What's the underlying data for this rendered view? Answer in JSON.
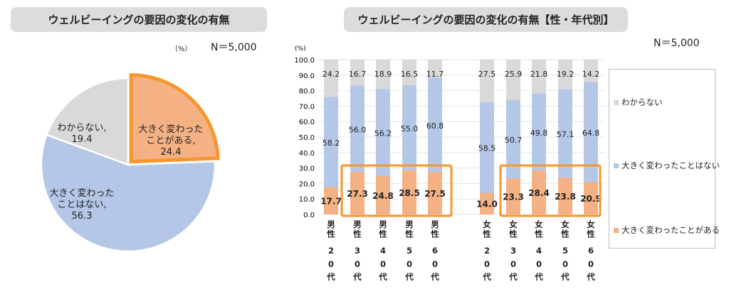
{
  "colors": {
    "changed": "#F4B183",
    "not_changed": "#B4C7E7",
    "unknown": "#D9D9D9",
    "highlight": "#F7962F"
  },
  "left": {
    "title": "ウェルビーイングの要因の変化の有無",
    "unit": "（%）",
    "n": "N＝5,000"
  },
  "right": {
    "title": "ウェルビーイングの要因の変化の有無【性・年代別】",
    "unit": "(%)",
    "n": "N＝5,000"
  },
  "chart_data": [
    {
      "type": "pie",
      "title": "ウェルビーイングの要因の変化の有無",
      "slices": [
        {
          "label_lines": [
            "大きく変わった",
            "ことがある,"
          ],
          "value": 24.4,
          "value_label": "24.4",
          "highlighted": true
        },
        {
          "label_lines": [
            "大きく変わった",
            "ことはない,"
          ],
          "value": 56.3,
          "value_label": "56.3"
        },
        {
          "label_lines": [
            "わからない,"
          ],
          "value": 19.4,
          "value_label": "19.4"
        }
      ]
    },
    {
      "type": "bar",
      "stacked": true,
      "title": "ウェルビーイングの要因の変化の有無【性・年代別】",
      "ylabel": "(%)",
      "ylim": [
        0,
        100
      ],
      "yticks": [
        "0.0",
        "10.0",
        "20.0",
        "30.0",
        "40.0",
        "50.0",
        "60.0",
        "70.0",
        "80.0",
        "90.0",
        "100.0"
      ],
      "categories": [
        {
          "sex": "男性",
          "age": "20代"
        },
        {
          "sex": "男性",
          "age": "30代"
        },
        {
          "sex": "男性",
          "age": "40代"
        },
        {
          "sex": "男性",
          "age": "50代"
        },
        {
          "sex": "男性",
          "age": "60代"
        },
        {
          "sex": "女性",
          "age": "20代"
        },
        {
          "sex": "女性",
          "age": "30代"
        },
        {
          "sex": "女性",
          "age": "40代"
        },
        {
          "sex": "女性",
          "age": "50代"
        },
        {
          "sex": "女性",
          "age": "60代"
        }
      ],
      "series": [
        {
          "name": "大きく変わったことがある",
          "values": [
            17.7,
            27.3,
            24.8,
            28.5,
            27.5,
            14.0,
            23.3,
            28.4,
            23.8,
            20.9
          ]
        },
        {
          "name": "大きく変わったことはない",
          "values": [
            58.2,
            56.0,
            56.2,
            55.0,
            60.8,
            58.5,
            50.7,
            49.8,
            57.1,
            64.8
          ]
        },
        {
          "name": "わからない",
          "values": [
            24.2,
            16.7,
            18.9,
            16.5,
            11.7,
            27.5,
            25.9,
            21.8,
            19.2,
            14.2
          ]
        }
      ],
      "legend": "right"
    }
  ]
}
